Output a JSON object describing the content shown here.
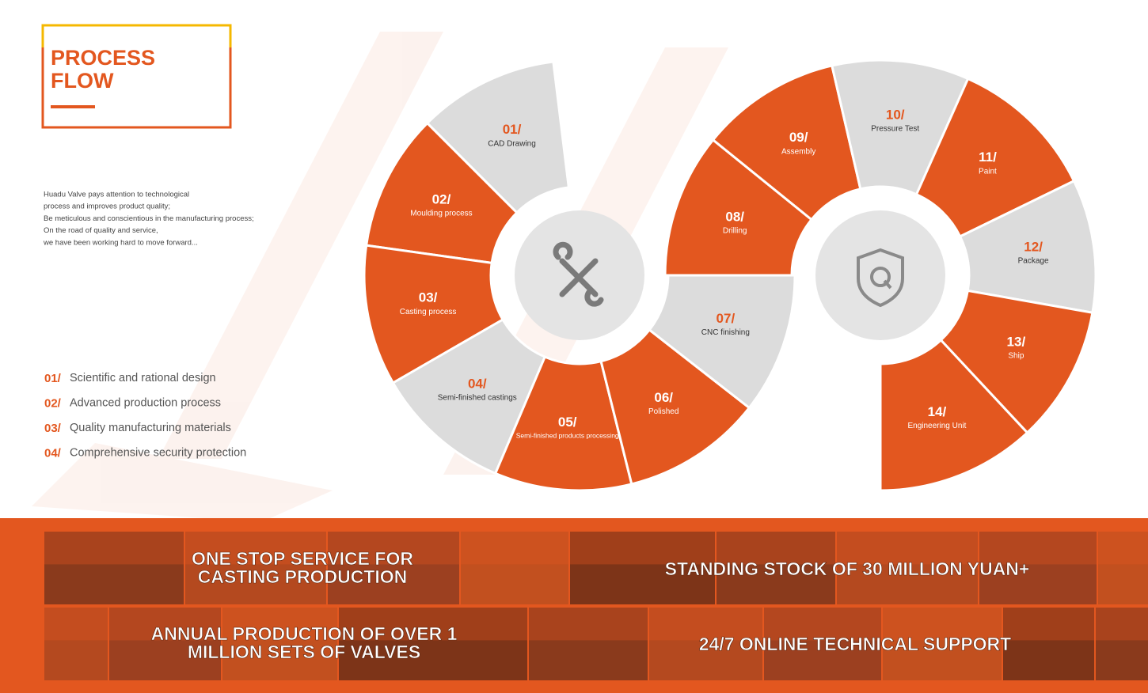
{
  "header": {
    "title_lines": [
      "PROCESS",
      "FLOW"
    ]
  },
  "intro": [
    "Huadu Valve pays attention to technological",
    "process and improves product quality;",
    "Be meticulous and conscientious in the manufacturing process;",
    "On the road of quality and service,",
    "we have been working hard to move forward..."
  ],
  "highlights": [
    {
      "number": "01/",
      "text": "Scientific and rational design"
    },
    {
      "number": "02/",
      "text": "Advanced production process"
    },
    {
      "number": "03/",
      "text": "Quality manufacturing materials"
    },
    {
      "number": "04/",
      "text": "Comprehensive security protection"
    }
  ],
  "steps": [
    {
      "number": "01/",
      "label": "CAD Drawing"
    },
    {
      "number": "02/",
      "label": "Moulding process"
    },
    {
      "number": "03/",
      "label": "Casting process"
    },
    {
      "number": "04/",
      "label": "Semi-finished castings"
    },
    {
      "number": "05/",
      "label": "Semi-finished products processing"
    },
    {
      "number": "06/",
      "label": "Polished"
    },
    {
      "number": "07/",
      "label": "CNC finishing"
    },
    {
      "number": "08/",
      "label": "Drilling"
    },
    {
      "number": "09/",
      "label": "Assembly"
    },
    {
      "number": "10/",
      "label": "Pressure Test"
    },
    {
      "number": "11/",
      "label": "Paint"
    },
    {
      "number": "12/",
      "label": "Package"
    },
    {
      "number": "13/",
      "label": "Ship"
    },
    {
      "number": "14/",
      "label": "Engineering Unit"
    }
  ],
  "banner": [
    {
      "lines": [
        "ONE STOP SERVICE FOR",
        "CASTING PRODUCTION"
      ]
    },
    {
      "lines": [
        "STANDING STOCK OF 30 MILLION YUAN+"
      ]
    },
    {
      "lines": [
        "ANNUAL PRODUCTION OF OVER 1",
        "MILLION SETS OF VALVES"
      ]
    },
    {
      "lines": [
        "24/7 ONLINE TECHNICAL SUPPORT"
      ]
    }
  ]
}
